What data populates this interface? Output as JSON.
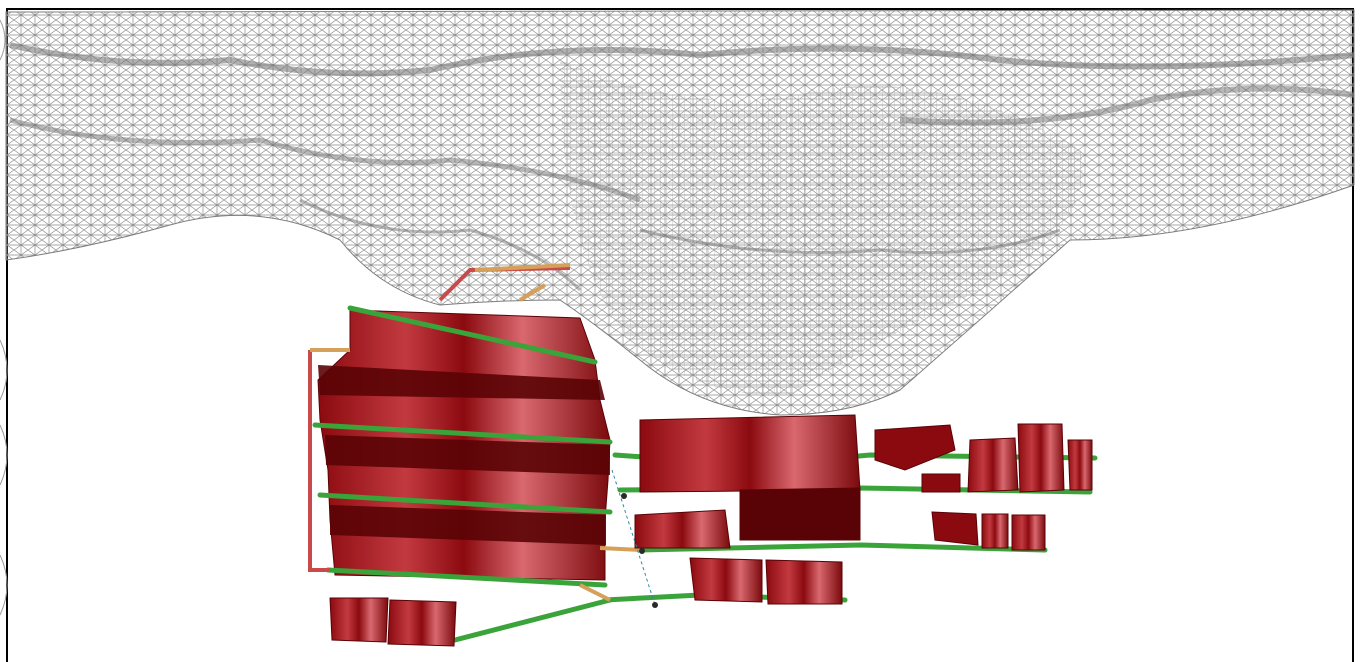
{
  "viewport": {
    "background": "#ffffff",
    "frame_color": "#000000",
    "scene": {
      "surface_mesh": {
        "color": "#8c8c8c",
        "style": "wireframe"
      },
      "stope_color": "#8b0a0f",
      "stope_shade_color": "#5a0306",
      "stope_highlight_color": "#d9686f",
      "drive_color": "#3aa33a",
      "ramp_color": "#d4a05a",
      "raise_color": "#c94a4a"
    }
  }
}
